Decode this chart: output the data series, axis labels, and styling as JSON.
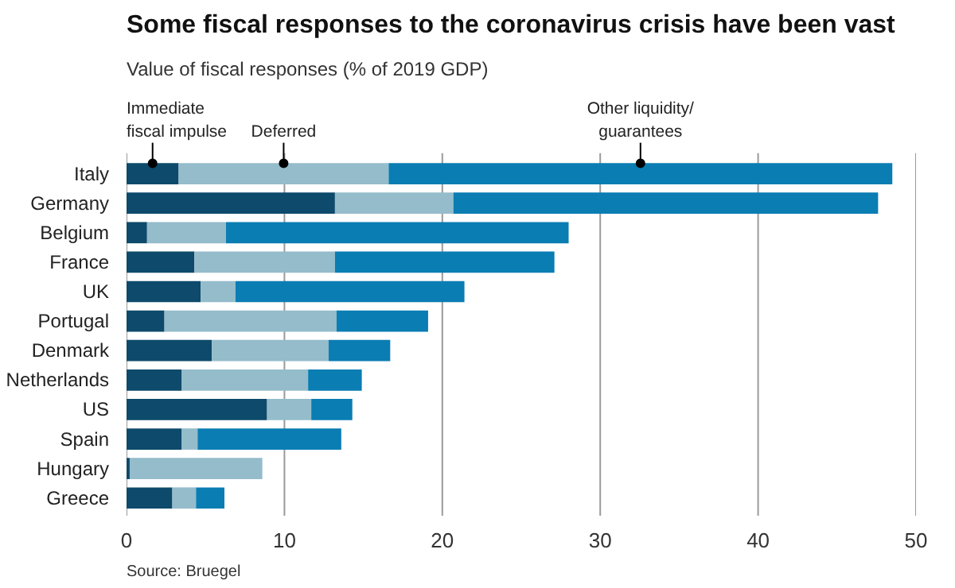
{
  "chart_data": {
    "type": "bar",
    "orientation": "horizontal",
    "stacked": true,
    "title": "Some fiscal responses to the coronavirus crisis have been vast",
    "subtitle": "Value of fiscal responses (% of 2019 GDP)",
    "categories": [
      "Italy",
      "Germany",
      "Belgium",
      "France",
      "UK",
      "Portugal",
      "Denmark",
      "Netherlands",
      "US",
      "Spain",
      "Hungary",
      "Greece"
    ],
    "series": [
      {
        "name": "Immediate\nfiscal impulse",
        "color": "#0d4a6b",
        "values": [
          3.3,
          13.2,
          1.3,
          4.3,
          4.7,
          2.4,
          5.4,
          3.5,
          8.9,
          3.5,
          0.2,
          2.9
        ]
      },
      {
        "name": "Deferred",
        "color": "#94bccb",
        "values": [
          13.3,
          7.5,
          5.0,
          8.9,
          2.2,
          10.9,
          7.4,
          8.0,
          2.8,
          1.0,
          8.4,
          1.5
        ]
      },
      {
        "name": "Other liquidity/\nguarantees",
        "color": "#0a7db3",
        "values": [
          31.9,
          26.9,
          21.7,
          13.9,
          14.5,
          5.8,
          3.9,
          3.4,
          2.6,
          9.1,
          0,
          1.8
        ]
      }
    ],
    "xlim": [
      0,
      50
    ],
    "xticks": [
      0,
      10,
      20,
      30,
      40,
      50
    ],
    "grid": "x",
    "annotations": [
      "Source: Bruegel"
    ]
  }
}
